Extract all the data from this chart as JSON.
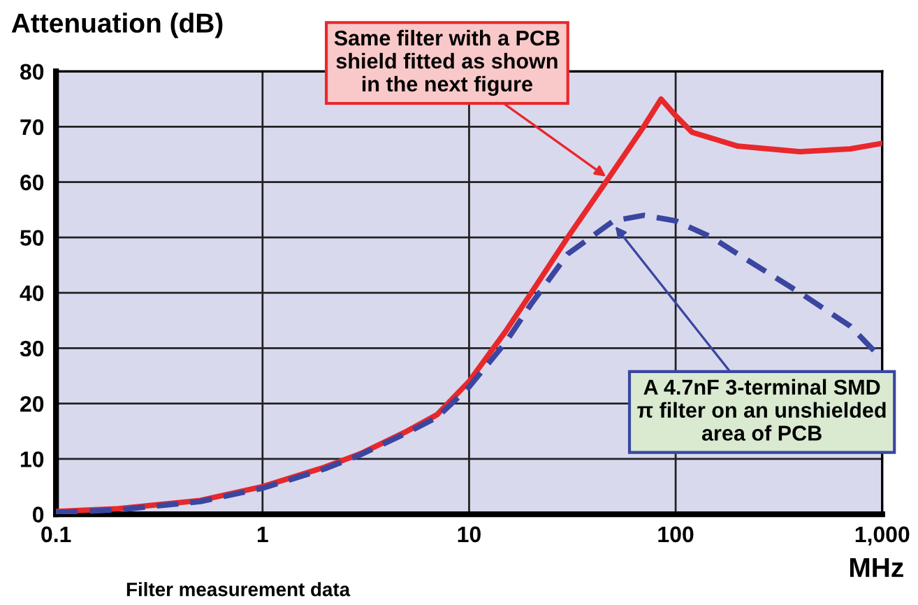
{
  "chart_data": {
    "type": "line",
    "ylabel": "Attenuation (dB)",
    "xlabel": "MHz",
    "log": "x",
    "xlim": [
      0.1,
      1000
    ],
    "xticks": [
      0.1,
      1,
      10,
      100,
      {
        "value": 1000,
        "label": "1,000"
      }
    ],
    "ylim": [
      0,
      80
    ],
    "yticks": [
      0,
      10,
      20,
      30,
      40,
      50,
      60,
      70,
      80
    ],
    "grid": true,
    "legend": false,
    "series": [
      {
        "color": "#e8282b",
        "line_style": "solid",
        "x": [
          0.1,
          0.2,
          0.5,
          1,
          2,
          3,
          5,
          7,
          10,
          15,
          20,
          30,
          50,
          70,
          85,
          100,
          120,
          200,
          400,
          700,
          1000
        ],
        "values": [
          0.5,
          1,
          2.5,
          5,
          8.5,
          11,
          15,
          18,
          24,
          33,
          40,
          50,
          62,
          70,
          75,
          72,
          69,
          66.5,
          65.5,
          66,
          67
        ]
      },
      {
        "color": "#3a46a0",
        "line_style": "dashed",
        "x": [
          0.1,
          0.2,
          0.5,
          1,
          2,
          3,
          5,
          7,
          10,
          15,
          20,
          30,
          50,
          70,
          100,
          150,
          200,
          400,
          700,
          1000
        ],
        "values": [
          0.3,
          0.8,
          2.3,
          4.7,
          8.2,
          10.8,
          14.7,
          17.5,
          23,
          31,
          38,
          47,
          53,
          54,
          53,
          50,
          47,
          40,
          34,
          28
        ]
      }
    ],
    "annotations": [
      {
        "text": "Same filter with a PCB\nshield fitted as shown\nin the next figure",
        "x": 46,
        "y": 61
      },
      {
        "text": "A 4.7nF 3-terminal SMD\nπ filter on an unshielded\narea of PCB",
        "x": 51,
        "y": 52
      },
      "Filter measurement data"
    ]
  }
}
